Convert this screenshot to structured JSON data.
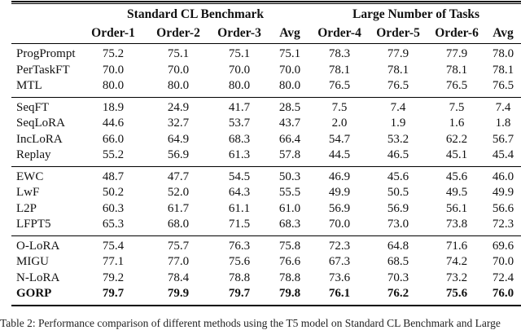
{
  "table": {
    "group_headers": [
      "Standard CL Benchmark",
      "Large Number of Tasks"
    ],
    "columns": [
      "Order-1",
      "Order-2",
      "Order-3",
      "Avg",
      "Order-4",
      "Order-5",
      "Order-6",
      "Avg"
    ],
    "groups": [
      {
        "rows": [
          {
            "method": "ProgPrompt",
            "bold": false,
            "values": [
              "75.2",
              "75.1",
              "75.1",
              "75.1",
              "78.3",
              "77.9",
              "77.9",
              "78.0"
            ]
          },
          {
            "method": "PerTaskFT",
            "bold": false,
            "values": [
              "70.0",
              "70.0",
              "70.0",
              "70.0",
              "78.1",
              "78.1",
              "78.1",
              "78.1"
            ]
          },
          {
            "method": "MTL",
            "bold": false,
            "values": [
              "80.0",
              "80.0",
              "80.0",
              "80.0",
              "76.5",
              "76.5",
              "76.5",
              "76.5"
            ]
          }
        ]
      },
      {
        "rows": [
          {
            "method": "SeqFT",
            "bold": false,
            "values": [
              "18.9",
              "24.9",
              "41.7",
              "28.5",
              "7.5",
              "7.4",
              "7.5",
              "7.4"
            ]
          },
          {
            "method": "SeqLoRA",
            "bold": false,
            "values": [
              "44.6",
              "32.7",
              "53.7",
              "43.7",
              "2.0",
              "1.9",
              "1.6",
              "1.8"
            ]
          },
          {
            "method": "IncLoRA",
            "bold": false,
            "values": [
              "66.0",
              "64.9",
              "68.3",
              "66.4",
              "54.7",
              "53.2",
              "62.2",
              "56.7"
            ]
          },
          {
            "method": "Replay",
            "bold": false,
            "values": [
              "55.2",
              "56.9",
              "61.3",
              "57.8",
              "44.5",
              "46.5",
              "45.1",
              "45.4"
            ]
          }
        ]
      },
      {
        "rows": [
          {
            "method": "EWC",
            "bold": false,
            "values": [
              "48.7",
              "47.7",
              "54.5",
              "50.3",
              "46.9",
              "45.6",
              "45.6",
              "46.0"
            ]
          },
          {
            "method": "LwF",
            "bold": false,
            "values": [
              "50.2",
              "52.0",
              "64.3",
              "55.5",
              "49.9",
              "50.5",
              "49.5",
              "49.9"
            ]
          },
          {
            "method": "L2P",
            "bold": false,
            "values": [
              "60.3",
              "61.7",
              "61.1",
              "61.0",
              "56.9",
              "56.9",
              "56.1",
              "56.6"
            ]
          },
          {
            "method": "LFPT5",
            "bold": false,
            "values": [
              "65.3",
              "68.0",
              "71.5",
              "68.3",
              "70.0",
              "73.0",
              "73.8",
              "72.3"
            ]
          }
        ]
      },
      {
        "rows": [
          {
            "method": "O-LoRA",
            "bold": false,
            "values": [
              "75.4",
              "75.7",
              "76.3",
              "75.8",
              "72.3",
              "64.8",
              "71.6",
              "69.6"
            ]
          },
          {
            "method": "MIGU",
            "bold": false,
            "values": [
              "77.1",
              "77.0",
              "75.6",
              "76.6",
              "67.3",
              "68.5",
              "74.2",
              "70.0"
            ]
          },
          {
            "method": "N-LoRA",
            "bold": false,
            "values": [
              "79.2",
              "78.4",
              "78.8",
              "78.8",
              "73.6",
              "70.3",
              "73.2",
              "72.4"
            ]
          },
          {
            "method": "GORP",
            "bold": true,
            "values": [
              "79.7",
              "79.9",
              "79.7",
              "79.8",
              "76.1",
              "76.2",
              "75.6",
              "76.0"
            ]
          }
        ]
      }
    ]
  },
  "caption": "Table 2: Performance comparison of different methods using the T5 model on Standard CL Benchmark and Large"
}
